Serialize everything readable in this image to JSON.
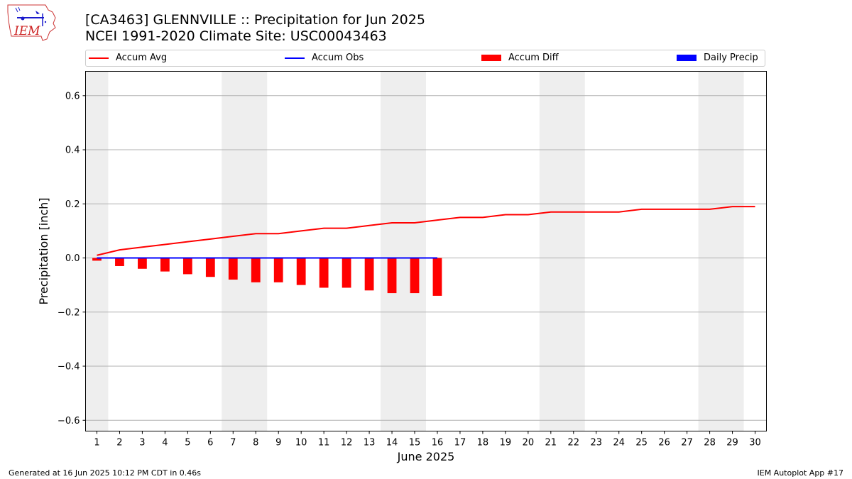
{
  "header": {
    "title_line1": "[CA3463] GLENNVILLE :: Precipitation for Jun 2025",
    "title_line2": "NCEI 1991-2020 Climate Site: USC00043463",
    "logo_text": "IEM"
  },
  "legend": {
    "items": [
      {
        "label": "Accum Avg",
        "color": "#ff0000",
        "kind": "line"
      },
      {
        "label": "Accum Obs",
        "color": "#0000ff",
        "kind": "line"
      },
      {
        "label": "Accum Diff",
        "color": "#ff0000",
        "kind": "bar"
      },
      {
        "label": "Daily Precip",
        "color": "#0000ff",
        "kind": "bar"
      }
    ]
  },
  "footer": {
    "left": "Generated at 16 Jun 2025 10:12 PM CDT in 0.46s",
    "right": "IEM Autoplot App #17"
  },
  "chart_data": {
    "type": "bar",
    "xlabel": "June 2025",
    "ylabel": "Precipitation [inch]",
    "ylim": [
      -0.64,
      0.69
    ],
    "xlim": [
      0.5,
      30.5
    ],
    "yticks": [
      -0.6,
      -0.4,
      -0.2,
      0.0,
      0.2,
      0.4,
      0.6
    ],
    "ytick_labels": [
      "−0.6",
      "−0.4",
      "−0.2",
      "0.0",
      "0.2",
      "0.4",
      "0.6"
    ],
    "days": [
      1,
      2,
      3,
      4,
      5,
      6,
      7,
      8,
      9,
      10,
      11,
      12,
      13,
      14,
      15,
      16,
      17,
      18,
      19,
      20,
      21,
      22,
      23,
      24,
      25,
      26,
      27,
      28,
      29,
      30
    ],
    "grid": "y",
    "weekend_shading": [
      [
        0.5,
        1.5
      ],
      [
        6.5,
        8.5
      ],
      [
        13.5,
        15.5
      ],
      [
        20.5,
        22.5
      ],
      [
        27.5,
        29.5
      ]
    ],
    "series": [
      {
        "name": "Accum Avg",
        "kind": "line",
        "color": "#ff0000",
        "values": [
          0.01,
          0.03,
          0.04,
          0.05,
          0.06,
          0.07,
          0.08,
          0.09,
          0.09,
          0.1,
          0.11,
          0.11,
          0.12,
          0.13,
          0.13,
          0.14,
          0.15,
          0.15,
          0.16,
          0.16,
          0.17,
          0.17,
          0.17,
          0.17,
          0.18,
          0.18,
          0.18,
          0.18,
          0.19,
          0.19
        ]
      },
      {
        "name": "Accum Obs",
        "kind": "line",
        "color": "#0000ff",
        "values": [
          0,
          0,
          0,
          0,
          0,
          0,
          0,
          0,
          0,
          0,
          0,
          0,
          0,
          0,
          0,
          0
        ]
      },
      {
        "name": "Accum Diff",
        "kind": "bar",
        "color": "#ff0000",
        "values": [
          -0.01,
          -0.03,
          -0.04,
          -0.05,
          -0.06,
          -0.07,
          -0.08,
          -0.09,
          -0.09,
          -0.1,
          -0.11,
          -0.11,
          -0.12,
          -0.13,
          -0.13,
          -0.14
        ]
      },
      {
        "name": "Daily Precip",
        "kind": "bar",
        "color": "#0000ff",
        "values": [
          0,
          0,
          0,
          0,
          0,
          0,
          0,
          0,
          0,
          0,
          0,
          0,
          0,
          0,
          0,
          0
        ]
      }
    ]
  }
}
